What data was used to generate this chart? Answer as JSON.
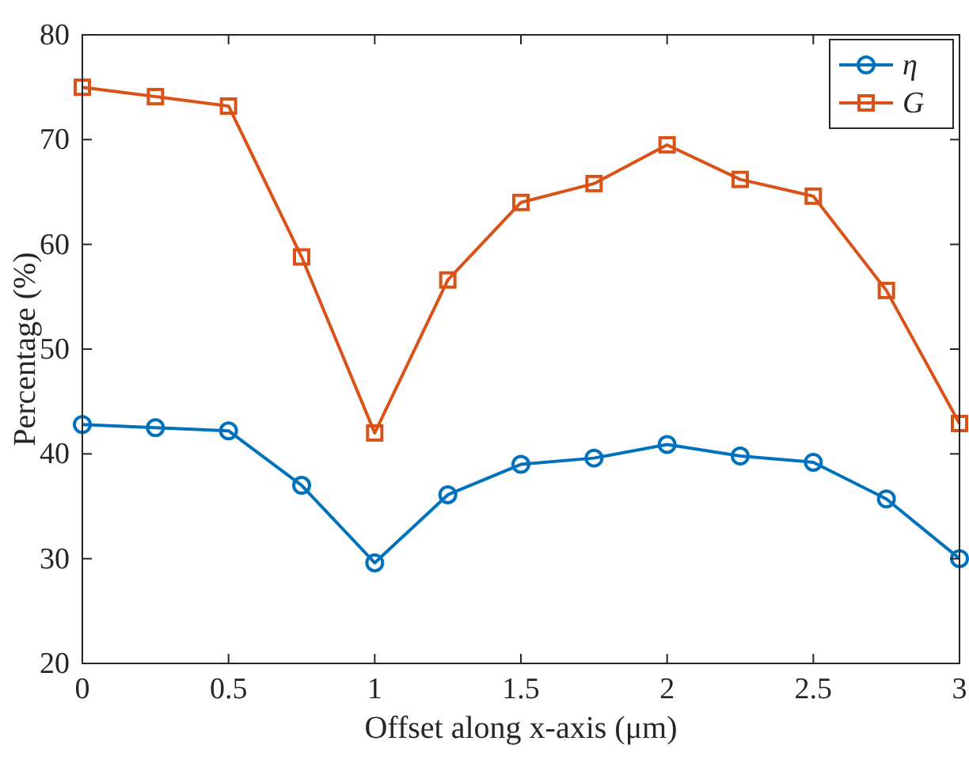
{
  "chart_data": {
    "type": "line",
    "xlabel": "Offset along x-axis (μm)",
    "ylabel": "Percentage (%)",
    "x": [
      0,
      0.25,
      0.5,
      0.75,
      1,
      1.25,
      1.5,
      1.75,
      2,
      2.25,
      2.5,
      2.75,
      3
    ],
    "series": [
      {
        "name": "η",
        "color": "#0072bd",
        "marker": "circle",
        "values": [
          42.8,
          42.5,
          42.2,
          37.0,
          29.6,
          36.1,
          39.0,
          39.6,
          40.9,
          39.8,
          39.2,
          35.7,
          30.0
        ]
      },
      {
        "name": "G",
        "color": "#d95319",
        "marker": "square",
        "values": [
          75.0,
          74.1,
          73.2,
          58.8,
          42.0,
          56.6,
          64.0,
          65.8,
          69.5,
          66.2,
          64.6,
          55.6,
          42.9
        ]
      }
    ],
    "xlim": [
      0,
      3
    ],
    "xticks": [
      0,
      0.5,
      1,
      1.5,
      2,
      2.5,
      3
    ],
    "ylim": [
      20,
      80
    ],
    "yticks": [
      20,
      30,
      40,
      50,
      60,
      70,
      80
    ],
    "legend": "top right",
    "line_style": "solid"
  }
}
